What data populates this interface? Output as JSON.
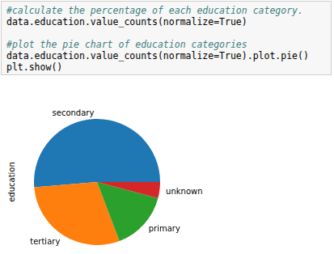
{
  "code": [
    [
      "#calculate the percentage of each education category.",
      "data.education.value_counts(normalize=True)"
    ],
    [
      "#plot the pie chart of education categories",
      "data.education.value_counts(normalize=True).plot.pie()",
      "plt.show()"
    ]
  ],
  "chart_data": {
    "type": "pie",
    "ylabel": "education",
    "categories": [
      "secondary",
      "tertiary",
      "primary",
      "unknown"
    ],
    "values": [
      0.513,
      0.294,
      0.151,
      0.041
    ],
    "colors": [
      "#1f77b4",
      "#ff7f0e",
      "#2ca02c",
      "#d62728"
    ]
  }
}
